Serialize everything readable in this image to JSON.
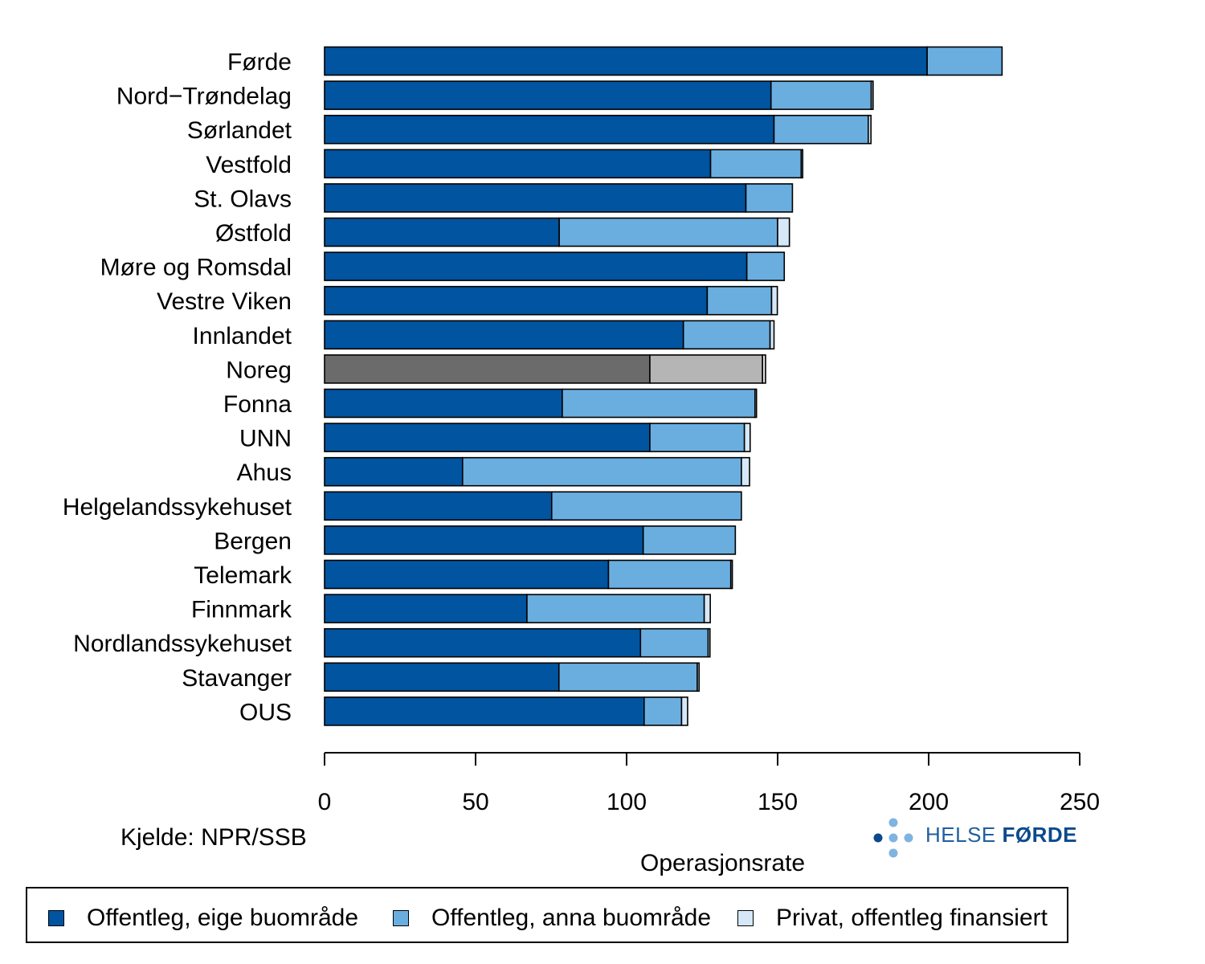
{
  "chart_data": {
    "type": "bar",
    "orientation": "horizontal",
    "stacked": true,
    "categories": [
      "Førde",
      "Nord−Trøndelag",
      "Sørlandet",
      "Vestfold",
      "St. Olavs",
      "Østfold",
      "Møre og Romsdal",
      "Vestre Viken",
      "Innlandet",
      "Noreg",
      "Fonna",
      "UNN",
      "Ahus",
      "Helgelandssykehuset",
      "Bergen",
      "Telemark",
      "Finnmark",
      "Nordlandssykehuset",
      "Stavanger",
      "OUS"
    ],
    "highlight_category": "Noreg",
    "series": [
      {
        "name": "Offentleg, eige buområde",
        "color": "#0054a0",
        "highlight_color": "#6b6b6b",
        "values": [
          199.5,
          147.8,
          148.8,
          127.8,
          139.5,
          77.7,
          139.8,
          126.7,
          118.8,
          107.7,
          78.7,
          107.7,
          45.7,
          75.2,
          105.5,
          94.0,
          67.0,
          104.6,
          77.6,
          105.8
        ]
      },
      {
        "name": "Offentleg, anna buområde",
        "color": "#6aaee0",
        "highlight_color": "#b5b5b5",
        "values": [
          24.8,
          33.2,
          31.2,
          30.0,
          15.4,
          72.3,
          12.4,
          21.3,
          28.7,
          37.3,
          63.8,
          31.3,
          92.3,
          62.8,
          30.5,
          40.5,
          58.7,
          22.4,
          45.8,
          12.4
        ]
      },
      {
        "name": "Privat, offentleg finansiert",
        "color": "#d6e8f7",
        "highlight_color": "#e5e5e5",
        "values": [
          0.0,
          0.6,
          0.9,
          0.5,
          0.0,
          3.9,
          0.0,
          1.9,
          1.3,
          1.0,
          0.5,
          1.9,
          2.7,
          0.0,
          0.0,
          0.5,
          2.0,
          0.6,
          0.6,
          2.0
        ]
      }
    ],
    "xlim": [
      0,
      250
    ],
    "xticks": [
      0,
      50,
      100,
      150,
      200,
      250
    ],
    "xlabel": "Operasjonsrate",
    "grid": false,
    "legend_position": "bottom"
  },
  "source_text": "Kjelde: NPR/SSB",
  "logo": {
    "text_light": "HELSE ",
    "text_bold": "FØRDE",
    "color": "#1f5fa0"
  },
  "legend": {
    "items": [
      {
        "label": "Offentleg, eige buområde",
        "color": "#0054a0"
      },
      {
        "label": "Offentleg, anna buområde",
        "color": "#6aaee0"
      },
      {
        "label": "Privat, offentleg finansiert",
        "color": "#d6e8f7"
      }
    ]
  }
}
